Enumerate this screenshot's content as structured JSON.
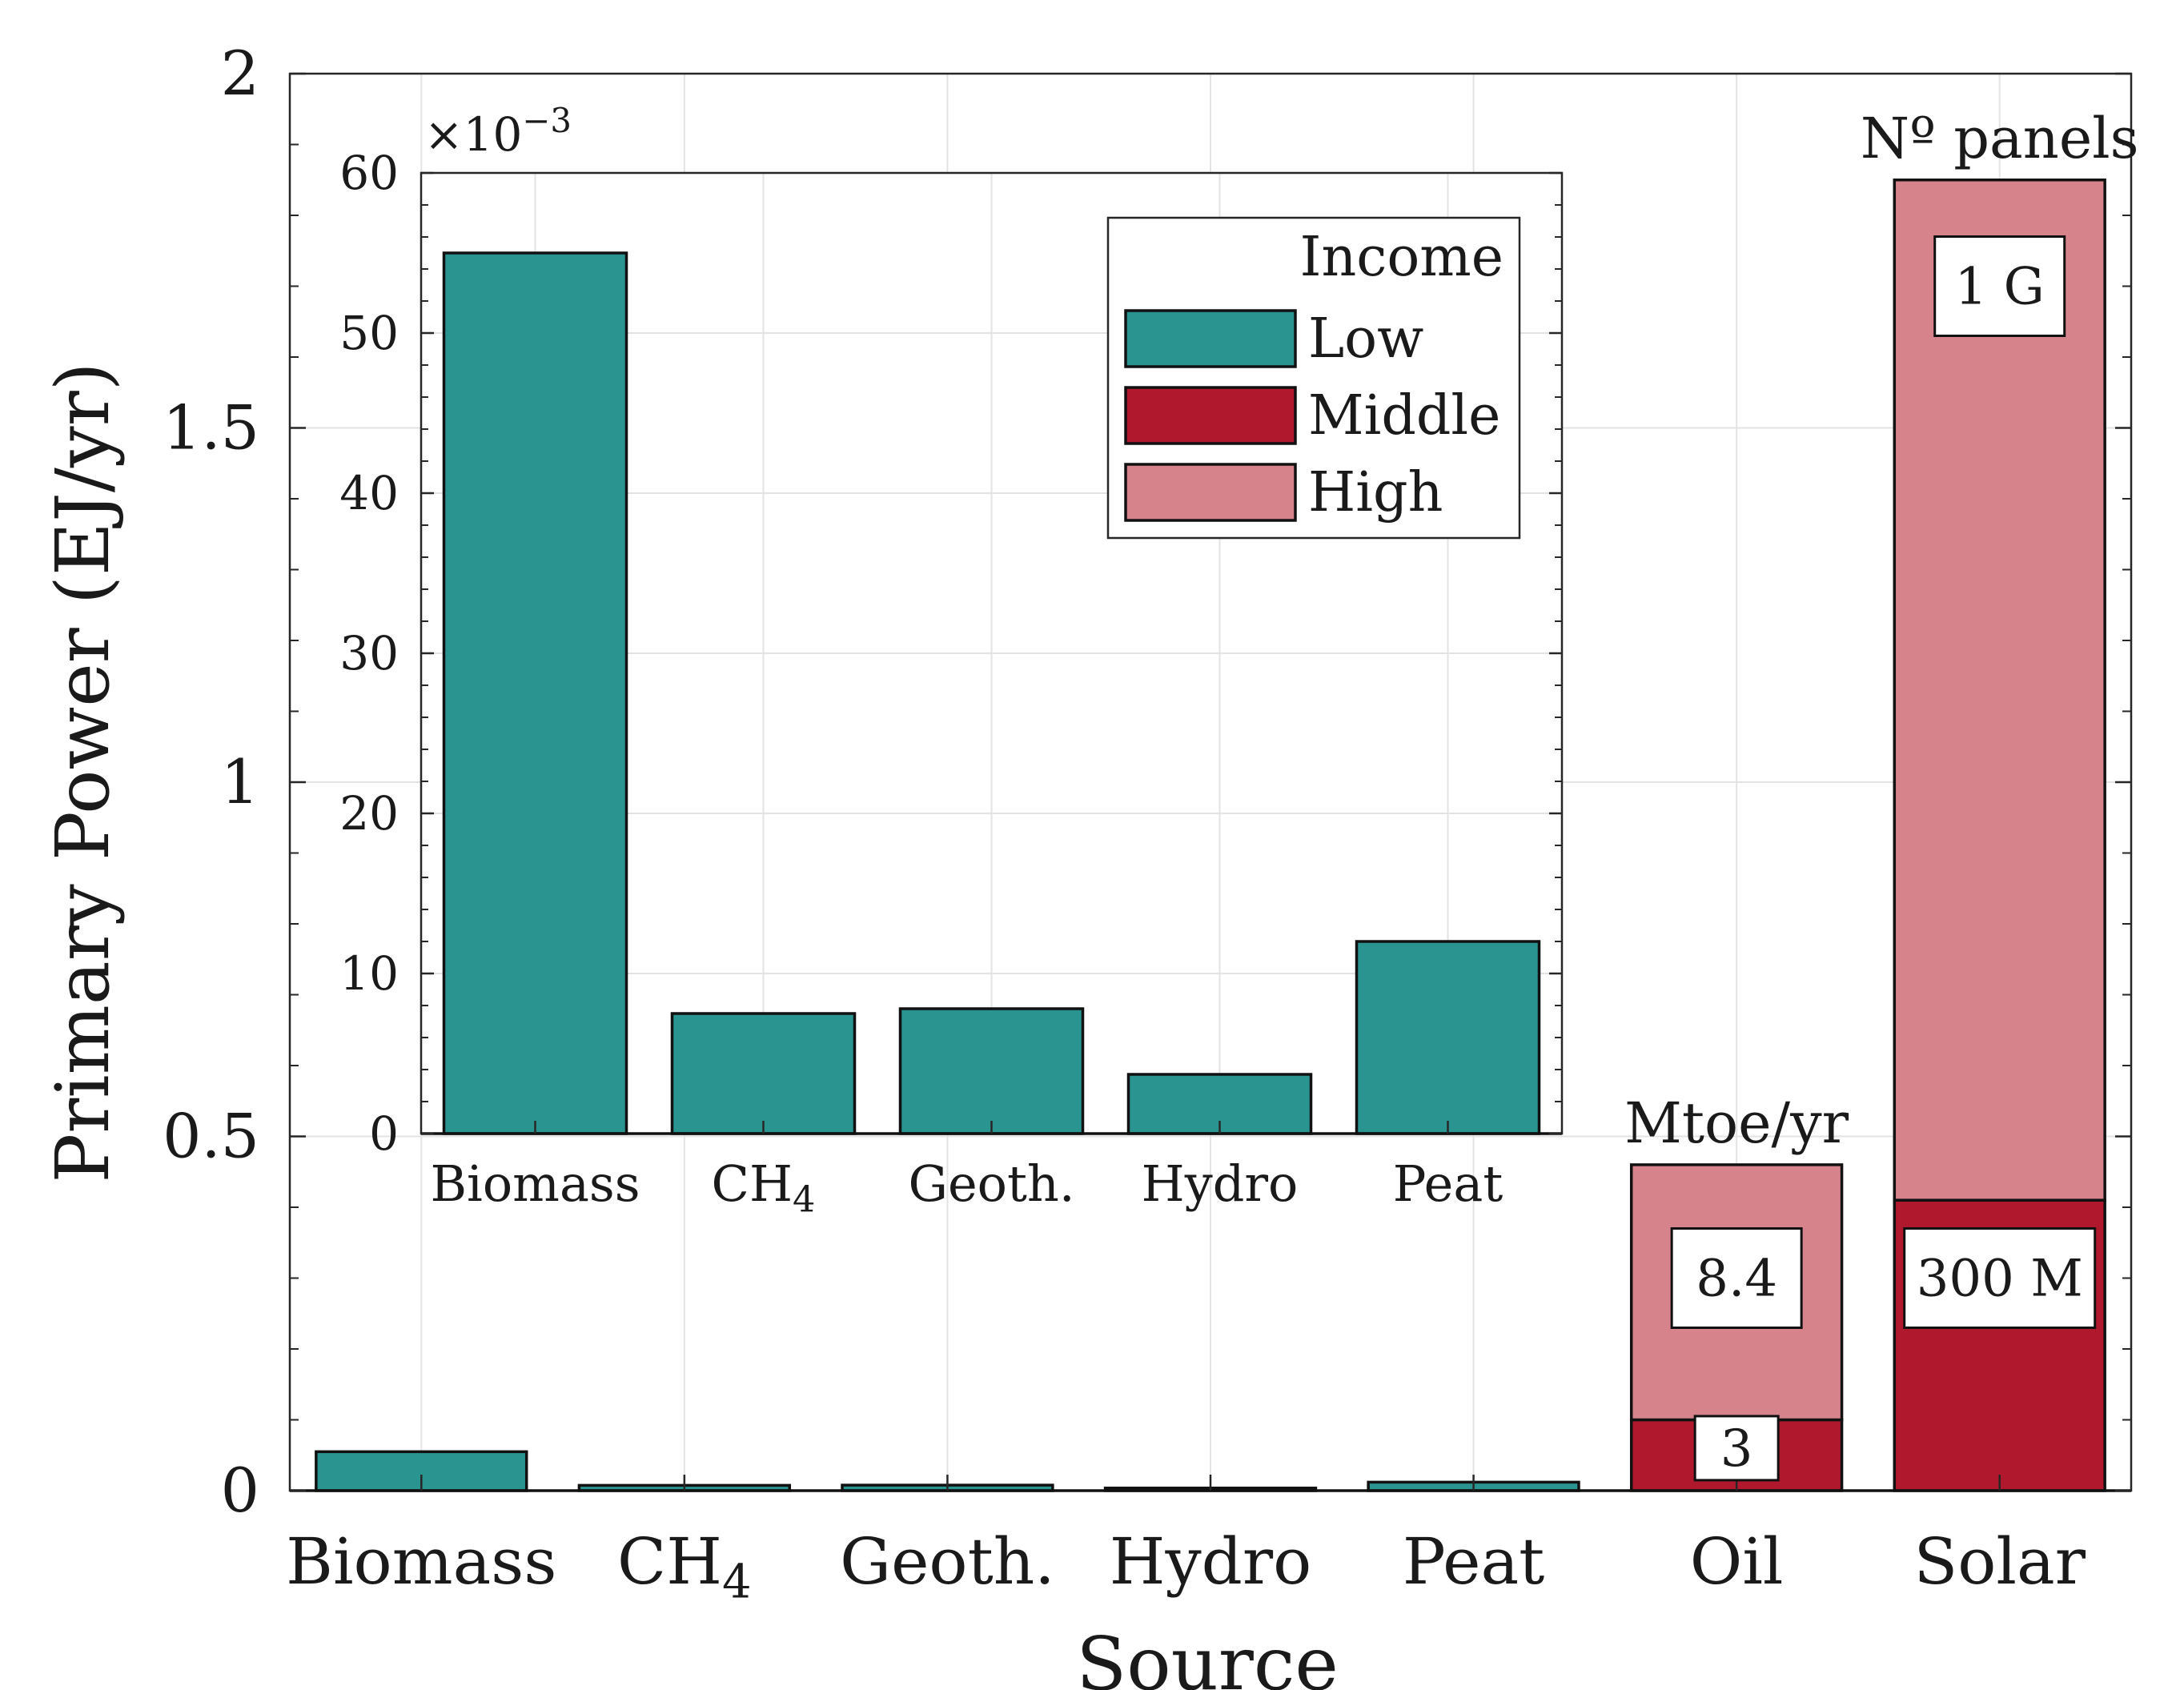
{
  "chart_data": [
    {
      "type": "bar",
      "stacked": true,
      "xlabel": "Source",
      "ylabel": "Primary Power (EJ/yr)",
      "ylim": [
        0,
        2
      ],
      "yticks": [
        0,
        0.5,
        1,
        1.5,
        2
      ],
      "ytick_labels": [
        "0",
        "0.5",
        "1",
        "1.5",
        "2"
      ],
      "grid": true,
      "categories": [
        "Biomass",
        "CH4",
        "Geoth.",
        "Hydro",
        "Peat",
        "Oil",
        "Solar"
      ],
      "category_labels": [
        {
          "base": "Biomass",
          "sub": ""
        },
        {
          "base": "CH",
          "sub": "4"
        },
        {
          "base": "Geoth.",
          "sub": ""
        },
        {
          "base": "Hydro",
          "sub": ""
        },
        {
          "base": "Peat",
          "sub": ""
        },
        {
          "base": "Oil",
          "sub": ""
        },
        {
          "base": "Solar",
          "sub": ""
        }
      ],
      "series": [
        {
          "name": "Low",
          "color": "#2a9490",
          "values": [
            0.055,
            0.0075,
            0.0078,
            0.0037,
            0.012,
            0,
            0
          ]
        },
        {
          "name": "Middle",
          "color": "#b0192d",
          "values": [
            0,
            0,
            0,
            0,
            0,
            0.1,
            0.41
          ]
        },
        {
          "name": "High",
          "color": "#d6838c",
          "values": [
            0,
            0,
            0,
            0,
            0,
            0.36,
            1.44
          ]
        }
      ],
      "annotations": [
        {
          "category": "Oil",
          "heading": "Mtoe/yr",
          "boxes": [
            {
              "label": "8.4",
              "y": 0.3
            },
            {
              "label": "3",
              "y": 0.06
            }
          ]
        },
        {
          "category": "Solar",
          "heading": "Nº panels",
          "boxes": [
            {
              "label": "1 G",
              "y": 1.7
            },
            {
              "label": "300 M",
              "y": 0.3
            }
          ]
        }
      ]
    },
    {
      "type": "bar",
      "role": "inset",
      "exponent_label": {
        "base": "×10",
        "exp": "−3"
      },
      "ylim": [
        0,
        60
      ],
      "yticks": [
        0,
        10,
        20,
        30,
        40,
        50,
        60
      ],
      "categories": [
        "Biomass",
        "CH4",
        "Geoth.",
        "Hydro",
        "Peat"
      ],
      "category_labels": [
        {
          "base": "Biomass",
          "sub": ""
        },
        {
          "base": "CH",
          "sub": "4"
        },
        {
          "base": "Geoth.",
          "sub": ""
        },
        {
          "base": "Hydro",
          "sub": ""
        },
        {
          "base": "Peat",
          "sub": ""
        }
      ],
      "series": [
        {
          "name": "Low",
          "color": "#2a9490",
          "values": [
            55,
            7.5,
            7.8,
            3.7,
            12
          ]
        }
      ]
    }
  ],
  "legend": {
    "title": "Income",
    "position": "top-right of inset",
    "items": [
      {
        "label": "Low",
        "color": "#2a9490"
      },
      {
        "label": "Middle",
        "color": "#b0192d"
      },
      {
        "label": "High",
        "color": "#d6838c"
      }
    ]
  }
}
